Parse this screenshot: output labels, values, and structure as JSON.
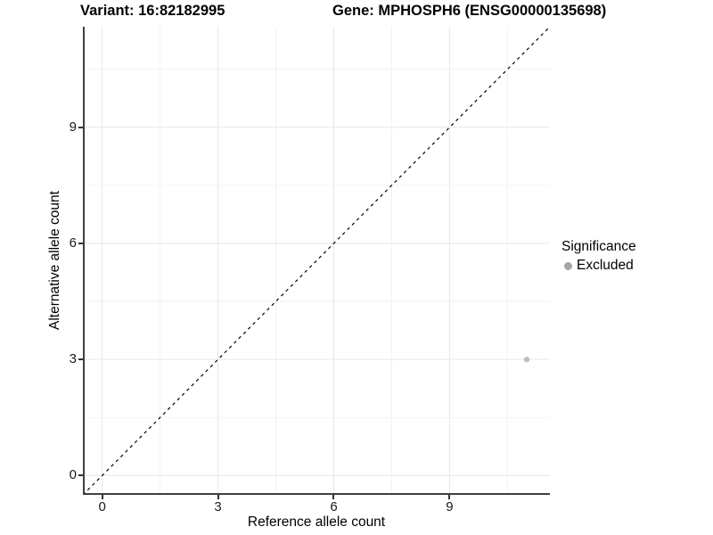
{
  "titles": {
    "variant": "Variant: 16:82182995",
    "gene": "Gene: MPHOSPH6 (ENSG00000135698)"
  },
  "x_axis": {
    "label": "Reference allele count",
    "tick_labels": [
      "0",
      "3",
      "6",
      "9"
    ]
  },
  "y_axis": {
    "label": "Alternative allele count",
    "tick_labels": [
      "0",
      "3",
      "6",
      "9"
    ]
  },
  "legend": {
    "title": "Significance",
    "items": [
      {
        "label": "Excluded",
        "key_color": "#a6a6a6"
      }
    ]
  },
  "colors": {
    "axis_line": "#3f3f3f",
    "grid_major": "#e7e7e7",
    "grid_minor": "#f2f2f2",
    "tick_mark": "#333333",
    "point": "#bfbfbf",
    "identity_line": "#000000",
    "background": "#ffffff"
  },
  "chart_data": {
    "type": "scatter",
    "title_left": "Variant: 16:82182995",
    "title_right": "Gene: MPHOSPH6 (ENSG00000135698)",
    "xlabel": "Reference allele count",
    "ylabel": "Alternative allele count",
    "xlim": [
      -0.5,
      11.6
    ],
    "ylim": [
      -0.5,
      11.6
    ],
    "xticks": [
      0,
      3,
      6,
      9
    ],
    "yticks": [
      0,
      3,
      6,
      9
    ],
    "grid": "major+minor",
    "legend_position": "right",
    "series": [
      {
        "name": "Excluded",
        "color": "#bfbfbf",
        "point_radius": 3.2,
        "points": [
          {
            "x": 11,
            "y": 3
          }
        ]
      }
    ],
    "reference_line": {
      "kind": "identity y=x",
      "style": "dashed",
      "x1": -0.5,
      "y1": -0.5,
      "x2": 11.6,
      "y2": 11.6
    }
  }
}
